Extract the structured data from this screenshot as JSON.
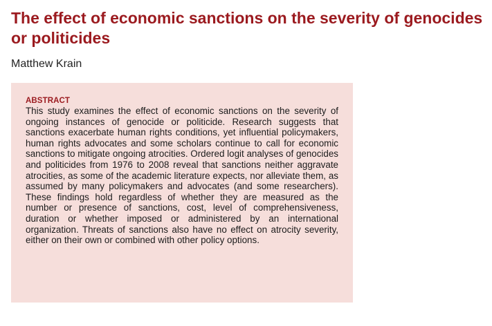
{
  "paper": {
    "title": "The effect of economic sanctions on the severity of genocides or politicides",
    "author": "Matthew Krain",
    "abstract": {
      "heading": "ABSTRACT",
      "text": "This study examines the effect of economic sanctions on the severity of ongoing instances of genocide or politicide. Research suggests that sanctions exacerbate human rights conditions, yet influential policymakers, human rights advocates and some scholars continue to call for economic sanctions to mitigate ongoing atrocities. Ordered logit analyses of genocides and politicides from 1976 to 2008 reveal that sanctions neither aggravate atrocities, as some of the academic literature expects, nor alleviate them, as assumed by many policymakers and advocates (and some researchers). These findings hold regardless of whether they are measured as the number or presence of sanctions, cost, level of comprehensiveness, duration or whether imposed or administered by an international organization. Threats of sanctions also have no effect on atrocity severity, either on their own or combined with other policy options."
    }
  },
  "colors": {
    "title": "#9b1a1f",
    "abstract_background": "#f6dedb",
    "body_text": "#1c1c1c"
  }
}
